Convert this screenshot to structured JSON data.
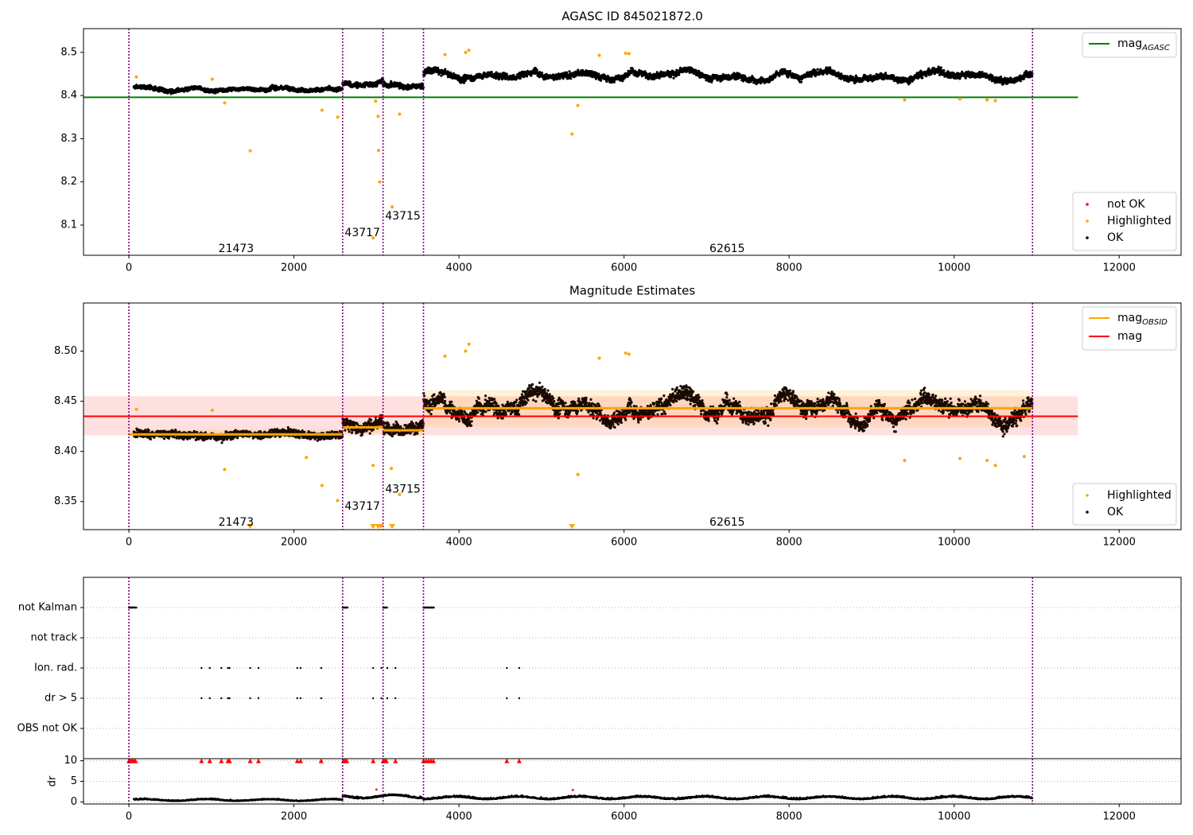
{
  "figure": {
    "title": "AGASC ID 845021872.0"
  },
  "chart_data": [
    {
      "type": "scatter",
      "title": "AGASC ID 845021872.0",
      "xlabel": "",
      "ylabel": "",
      "xlim": [
        -550,
        12750
      ],
      "ylim": [
        8.03,
        8.555
      ],
      "x_ticks": [
        0,
        2000,
        4000,
        6000,
        8000,
        10000,
        12000
      ],
      "y_ticks": [
        8.1,
        8.2,
        8.3,
        8.4,
        8.5
      ],
      "grid": false,
      "legend_lines": {
        "placement": "top-right",
        "entries": [
          {
            "label": "mag",
            "subscript": "AGASC",
            "color": "#008000"
          }
        ]
      },
      "legend_points": {
        "placement": "bottom-right",
        "entries": [
          {
            "label": "not OK",
            "color": "#ff0000"
          },
          {
            "label": "Highlighted",
            "color": "#ffa500"
          },
          {
            "label": "OK",
            "color": "#000000"
          }
        ]
      },
      "hline": {
        "name": "mag_AGASC",
        "y": 8.396,
        "x_range": [
          0,
          11500
        ],
        "color": "#008000"
      },
      "obsid_boundaries": [
        0,
        2590,
        3080,
        3570,
        10950
      ],
      "obsid_labels": [
        {
          "text": "21473",
          "x": 1300,
          "y": 8.045
        },
        {
          "text": "43717",
          "x": 2830,
          "y": 8.082
        },
        {
          "text": "43715",
          "x": 3320,
          "y": 8.12
        },
        {
          "text": "62615",
          "x": 7250,
          "y": 8.045
        }
      ],
      "series": [
        {
          "name": "OK",
          "color": "#000000",
          "segments": [
            {
              "x": [
                60,
                2590
              ],
              "base": 8.415,
              "amp": 0.008,
              "noise": 0.006
            },
            {
              "x": [
                2590,
                3080
              ],
              "base": 8.428,
              "amp": 0.012,
              "noise": 0.008
            },
            {
              "x": [
                3080,
                3570
              ],
              "base": 8.42,
              "amp": 0.012,
              "noise": 0.008
            },
            {
              "x": [
                3570,
                10950
              ],
              "base": 8.448,
              "amp": 0.018,
              "noise": 0.009
            }
          ]
        },
        {
          "name": "Highlighted",
          "color": "#ffa500",
          "points": [
            [
              90,
              8.443
            ],
            [
              1010,
              8.438
            ],
            [
              1160,
              8.383
            ],
            [
              1470,
              8.272
            ],
            [
              2340,
              8.366
            ],
            [
              2530,
              8.35
            ],
            [
              2960,
              8.07
            ],
            [
              2990,
              8.387
            ],
            [
              3020,
              8.352
            ],
            [
              3025,
              8.273
            ],
            [
              3040,
              8.2
            ],
            [
              3190,
              8.142
            ],
            [
              3280,
              8.357
            ],
            [
              3830,
              8.495
            ],
            [
              4080,
              8.5
            ],
            [
              4120,
              8.505
            ],
            [
              5370,
              8.311
            ],
            [
              5440,
              8.377
            ],
            [
              5700,
              8.493
            ],
            [
              6020,
              8.498
            ],
            [
              6060,
              8.497
            ],
            [
              9400,
              8.39
            ],
            [
              10070,
              8.392
            ],
            [
              10400,
              8.39
            ],
            [
              10500,
              8.388
            ]
          ]
        }
      ]
    },
    {
      "type": "scatter",
      "title": "Magnitude Estimates",
      "xlabel": "",
      "ylabel": "",
      "xlim": [
        -550,
        12750
      ],
      "ylim": [
        8.322,
        8.548
      ],
      "x_ticks": [
        0,
        2000,
        4000,
        6000,
        8000,
        10000,
        12000
      ],
      "y_ticks": [
        8.35,
        8.4,
        8.45,
        8.5
      ],
      "grid": false,
      "legend_lines": {
        "placement": "top-right",
        "entries": [
          {
            "label": "mag",
            "subscript": "OBSID",
            "color": "#ffa500"
          },
          {
            "label": "mag",
            "subscript": "",
            "color": "#ff0000"
          }
        ]
      },
      "legend_points": {
        "placement": "bottom-right",
        "entries": [
          {
            "label": "Highlighted",
            "color": "#ffa500"
          },
          {
            "label": "OK",
            "color": "#000000"
          }
        ]
      },
      "mag_band": {
        "y": 8.435,
        "low": 8.416,
        "high": 8.455,
        "x_range": [
          -550,
          11500
        ],
        "color": "#ff0000"
      },
      "mag_obsid": [
        {
          "x": [
            0,
            2590
          ],
          "y": 8.417,
          "low": 8.412,
          "high": 8.422
        },
        {
          "x": [
            2590,
            3080
          ],
          "y": 8.424,
          "low": 8.418,
          "high": 8.43
        },
        {
          "x": [
            3080,
            3570
          ],
          "y": 8.421,
          "low": 8.415,
          "high": 8.427
        },
        {
          "x": [
            3570,
            10950
          ],
          "y": 8.443,
          "low": 8.425,
          "high": 8.461
        }
      ],
      "obsid_boundaries": [
        0,
        2590,
        3080,
        3570,
        10950
      ],
      "obsid_labels": [
        {
          "text": "21473",
          "x": 1300,
          "y": 8.329
        },
        {
          "text": "43717",
          "x": 2830,
          "y": 8.345
        },
        {
          "text": "43715",
          "x": 3320,
          "y": 8.362
        },
        {
          "text": "62615",
          "x": 7250,
          "y": 8.329
        }
      ],
      "series": [
        {
          "name": "OK",
          "color": "#000000",
          "segments": [
            {
              "x": [
                60,
                2590
              ],
              "base": 8.417,
              "amp": 0.004,
              "noise": 0.005
            },
            {
              "x": [
                2590,
                3080
              ],
              "base": 8.428,
              "amp": 0.012,
              "noise": 0.008
            },
            {
              "x": [
                3080,
                3570
              ],
              "base": 8.42,
              "amp": 0.014,
              "noise": 0.008
            },
            {
              "x": [
                3570,
                10950
              ],
              "base": 8.445,
              "amp": 0.02,
              "noise": 0.01
            }
          ]
        },
        {
          "name": "Highlighted",
          "color": "#ffa500",
          "points": [
            [
              90,
              8.442
            ],
            [
              1010,
              8.441
            ],
            [
              1160,
              8.382
            ],
            [
              2150,
              8.394
            ],
            [
              2340,
              8.366
            ],
            [
              2530,
              8.351
            ],
            [
              2960,
              8.386
            ],
            [
              3180,
              8.383
            ],
            [
              3280,
              8.357
            ],
            [
              3830,
              8.495
            ],
            [
              4080,
              8.5
            ],
            [
              4120,
              8.507
            ],
            [
              5440,
              8.377
            ],
            [
              5700,
              8.493
            ],
            [
              6020,
              8.498
            ],
            [
              6060,
              8.497
            ],
            [
              9400,
              8.391
            ],
            [
              10070,
              8.393
            ],
            [
              10400,
              8.391
            ],
            [
              10500,
              8.386
            ],
            [
              10850,
              8.395
            ]
          ]
        },
        {
          "name": "Highlighted (below axis)",
          "color": "#ffa500",
          "marker": "triangle-down",
          "x": [
            1470,
            2960,
            3020,
            3050,
            3190,
            5370
          ]
        }
      ]
    },
    {
      "type": "scatter",
      "title": "",
      "xlabel": "",
      "ylabel": "",
      "xlim": [
        -550,
        12750
      ],
      "grid": true,
      "rows": [
        "not Kalman",
        "not track",
        "Ion. rad.",
        "dr > 5",
        "OBS not OK"
      ],
      "obsid_boundaries": [
        0,
        2590,
        3080,
        3570,
        10950
      ],
      "flags": {
        "not Kalman": [
          [
            0,
            90
          ],
          [
            2590,
            2650
          ],
          [
            3080,
            3130
          ],
          [
            3570,
            3700
          ]
        ],
        "not track": [],
        "Ion. rad.": [
          880,
          980,
          1120,
          1200,
          1220,
          1470,
          1570,
          2040,
          2080,
          2330,
          2960,
          3060,
          3130,
          3230,
          4580,
          4730
        ],
        "dr > 5": [
          880,
          980,
          1120,
          1200,
          1220,
          1470,
          1570,
          2040,
          2080,
          2330,
          2960,
          3060,
          3130,
          3230,
          4580,
          4730
        ],
        "OBS not OK": []
      }
    },
    {
      "type": "scatter",
      "title": "",
      "xlabel": "",
      "ylabel": "dr",
      "xlim": [
        -550,
        12750
      ],
      "ylim": [
        -0.5,
        10.5
      ],
      "y_ticks": [
        0,
        5,
        10
      ],
      "x_ticks": [
        0,
        2000,
        4000,
        6000,
        8000,
        10000,
        12000
      ],
      "grid": true,
      "obsid_boundaries": [
        0,
        2590,
        3080,
        3570,
        10950
      ],
      "series": [
        {
          "name": "dr",
          "color": "#000000",
          "segments": [
            {
              "x": [
                60,
                2590
              ],
              "base": 0.4,
              "amp": 0.2,
              "noise": 0.25
            },
            {
              "x": [
                2590,
                3570
              ],
              "base": 1.2,
              "amp": 0.4,
              "noise": 0.4
            },
            {
              "x": [
                3570,
                10950
              ],
              "base": 0.9,
              "amp": 0.3,
              "noise": 0.4
            }
          ]
        },
        {
          "name": "dr > 5 (clipped)",
          "color": "#ff0000",
          "marker": "triangle-up",
          "y": 10,
          "x": [
            0,
            20,
            40,
            60,
            80,
            880,
            980,
            1120,
            1200,
            1220,
            1470,
            1570,
            2040,
            2080,
            2330,
            2600,
            2620,
            2640,
            2960,
            3080,
            3100,
            3120,
            3230,
            3570,
            3600,
            3630,
            3660,
            3690,
            4580,
            4730
          ]
        },
        {
          "name": "red points",
          "color": "#ff0000",
          "points": [
            [
              3000,
              3.0
            ],
            [
              5380,
              2.9
            ]
          ]
        }
      ]
    }
  ]
}
